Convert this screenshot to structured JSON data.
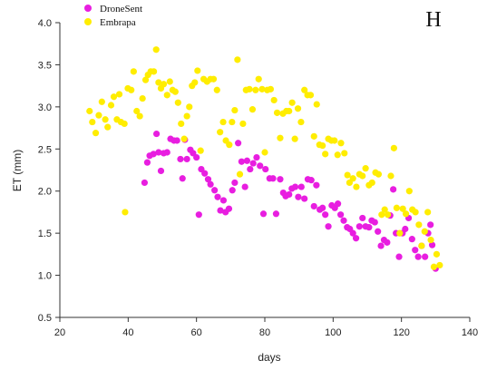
{
  "chart_data": {
    "type": "scatter",
    "title": "",
    "panel_label": "H",
    "xlabel": "days",
    "ylabel": "ET (mm)",
    "xlim": [
      20,
      140
    ],
    "ylim": [
      0.5,
      4.0
    ],
    "xticks": [
      20,
      40,
      60,
      80,
      100,
      120,
      140
    ],
    "yticks": [
      0.5,
      1.0,
      1.5,
      2.0,
      2.5,
      3.0,
      3.5,
      4.0
    ],
    "grid": false,
    "legend_position": "top-left",
    "series": [
      {
        "name": "DroneSent",
        "color": "#e81ee0",
        "points": [
          [
            44.8,
            2.1
          ],
          [
            45.6,
            2.34
          ],
          [
            46.3,
            2.42
          ],
          [
            47.4,
            2.44
          ],
          [
            48.3,
            2.68
          ],
          [
            48.9,
            2.46
          ],
          [
            49.6,
            2.24
          ],
          [
            50.4,
            2.45
          ],
          [
            51.4,
            2.46
          ],
          [
            52.4,
            2.62
          ],
          [
            53.4,
            2.6
          ],
          [
            54.3,
            2.6
          ],
          [
            55.3,
            2.38
          ],
          [
            55.9,
            2.15
          ],
          [
            56.6,
            2.61
          ],
          [
            57.2,
            2.38
          ],
          [
            58.2,
            2.49
          ],
          [
            59.0,
            2.45
          ],
          [
            60.0,
            2.4
          ],
          [
            60.7,
            1.72
          ],
          [
            61.4,
            2.26
          ],
          [
            62.4,
            2.21
          ],
          [
            63.4,
            2.14
          ],
          [
            64.1,
            2.08
          ],
          [
            65.3,
            2.01
          ],
          [
            66.2,
            1.93
          ],
          [
            67.0,
            1.77
          ],
          [
            67.9,
            1.89
          ],
          [
            68.5,
            1.75
          ],
          [
            69.5,
            1.79
          ],
          [
            70.5,
            2.01
          ],
          [
            71.2,
            2.1
          ],
          [
            72.2,
            2.57
          ],
          [
            73.2,
            2.35
          ],
          [
            74.2,
            2.05
          ],
          [
            74.8,
            2.36
          ],
          [
            75.7,
            2.26
          ],
          [
            76.6,
            2.33
          ],
          [
            77.6,
            2.4
          ],
          [
            78.6,
            2.3
          ],
          [
            79.6,
            1.73
          ],
          [
            80.2,
            2.26
          ],
          [
            81.4,
            2.15
          ],
          [
            82.4,
            2.15
          ],
          [
            83.3,
            1.73
          ],
          [
            84.5,
            2.14
          ],
          [
            85.4,
            1.98
          ],
          [
            86.1,
            1.94
          ],
          [
            87.1,
            1.96
          ],
          [
            87.9,
            2.03
          ],
          [
            88.9,
            2.05
          ],
          [
            89.8,
            1.93
          ],
          [
            90.7,
            2.05
          ],
          [
            91.6,
            1.91
          ],
          [
            92.6,
            2.14
          ],
          [
            93.6,
            2.13
          ],
          [
            94.4,
            1.82
          ],
          [
            95.1,
            2.07
          ],
          [
            96.1,
            1.78
          ],
          [
            96.9,
            1.8
          ],
          [
            97.7,
            1.72
          ],
          [
            98.6,
            1.58
          ],
          [
            99.6,
            1.83
          ],
          [
            100.5,
            1.8
          ],
          [
            101.4,
            1.85
          ],
          [
            102.2,
            1.72
          ],
          [
            103.1,
            1.65
          ],
          [
            104.1,
            1.57
          ],
          [
            104.9,
            1.55
          ],
          [
            105.8,
            1.5
          ],
          [
            106.7,
            1.44
          ],
          [
            107.7,
            1.58
          ],
          [
            108.6,
            1.68
          ],
          [
            109.5,
            1.58
          ],
          [
            110.5,
            1.57
          ],
          [
            111.3,
            1.65
          ],
          [
            112.2,
            1.63
          ],
          [
            113.1,
            1.52
          ],
          [
            114.0,
            1.35
          ],
          [
            114.9,
            1.42
          ],
          [
            115.8,
            1.39
          ],
          [
            116.7,
            1.71
          ],
          [
            117.6,
            2.02
          ],
          [
            118.4,
            1.5
          ],
          [
            119.3,
            1.22
          ],
          [
            120.3,
            1.5
          ],
          [
            121.1,
            1.55
          ],
          [
            122.1,
            1.68
          ],
          [
            123.1,
            1.43
          ],
          [
            124.0,
            1.3
          ],
          [
            124.9,
            1.22
          ],
          [
            125.9,
            1.35
          ],
          [
            126.9,
            1.22
          ],
          [
            127.8,
            1.5
          ],
          [
            128.5,
            1.6
          ],
          [
            129.0,
            1.36
          ],
          [
            130.0,
            1.08
          ]
        ]
      },
      {
        "name": "Embrapa",
        "color": "#ffed00",
        "points": [
          [
            28.7,
            2.95
          ],
          [
            29.5,
            2.82
          ],
          [
            30.5,
            2.69
          ],
          [
            31.4,
            2.9
          ],
          [
            32.3,
            3.06
          ],
          [
            33.3,
            2.85
          ],
          [
            34.0,
            2.76
          ],
          [
            35.0,
            3.02
          ],
          [
            35.8,
            3.12
          ],
          [
            36.7,
            2.85
          ],
          [
            37.4,
            3.15
          ],
          [
            37.9,
            2.82
          ],
          [
            38.9,
            2.8
          ],
          [
            39.1,
            1.75
          ],
          [
            39.9,
            3.22
          ],
          [
            40.9,
            3.2
          ],
          [
            41.6,
            3.42
          ],
          [
            42.5,
            2.95
          ],
          [
            43.4,
            2.89
          ],
          [
            44.2,
            3.1
          ],
          [
            45.1,
            3.32
          ],
          [
            45.8,
            3.38
          ],
          [
            46.6,
            3.42
          ],
          [
            47.5,
            3.42
          ],
          [
            48.2,
            3.68
          ],
          [
            48.9,
            3.29
          ],
          [
            49.6,
            3.22
          ],
          [
            50.4,
            3.27
          ],
          [
            51.4,
            3.14
          ],
          [
            52.2,
            3.3
          ],
          [
            53.0,
            3.2
          ],
          [
            53.8,
            3.18
          ],
          [
            54.6,
            3.05
          ],
          [
            55.5,
            2.8
          ],
          [
            56.4,
            2.62
          ],
          [
            57.2,
            2.89
          ],
          [
            57.9,
            3.0
          ],
          [
            58.7,
            3.25
          ],
          [
            59.5,
            3.29
          ],
          [
            60.3,
            3.43
          ],
          [
            61.2,
            2.48
          ],
          [
            62.1,
            3.33
          ],
          [
            63.1,
            3.3
          ],
          [
            64.1,
            3.33
          ],
          [
            65.0,
            3.33
          ],
          [
            66.0,
            3.2
          ],
          [
            66.9,
            2.7
          ],
          [
            67.8,
            2.82
          ],
          [
            68.6,
            2.6
          ],
          [
            69.6,
            2.55
          ],
          [
            70.4,
            2.82
          ],
          [
            71.2,
            2.96
          ],
          [
            72.0,
            3.56
          ],
          [
            72.7,
            2.2
          ],
          [
            73.6,
            2.8
          ],
          [
            74.5,
            3.2
          ],
          [
            75.5,
            3.21
          ],
          [
            76.4,
            2.97
          ],
          [
            77.3,
            3.2
          ],
          [
            78.2,
            3.33
          ],
          [
            79.2,
            3.21
          ],
          [
            80.0,
            2.46
          ],
          [
            80.7,
            3.2
          ],
          [
            81.7,
            3.21
          ],
          [
            82.7,
            3.08
          ],
          [
            83.6,
            2.93
          ],
          [
            84.5,
            2.63
          ],
          [
            85.3,
            2.92
          ],
          [
            86.3,
            2.95
          ],
          [
            87.1,
            2.95
          ],
          [
            88.0,
            3.05
          ],
          [
            88.8,
            2.62
          ],
          [
            89.7,
            2.98
          ],
          [
            90.6,
            2.82
          ],
          [
            91.6,
            3.2
          ],
          [
            92.5,
            3.14
          ],
          [
            93.4,
            3.14
          ],
          [
            94.4,
            2.65
          ],
          [
            95.2,
            3.03
          ],
          [
            96.0,
            2.55
          ],
          [
            96.9,
            2.54
          ],
          [
            97.7,
            2.44
          ],
          [
            98.6,
            2.62
          ],
          [
            99.5,
            2.6
          ],
          [
            100.4,
            2.6
          ],
          [
            101.3,
            2.43
          ],
          [
            102.3,
            2.57
          ],
          [
            103.3,
            2.45
          ],
          [
            104.2,
            2.19
          ],
          [
            104.8,
            2.1
          ],
          [
            105.8,
            2.15
          ],
          [
            106.8,
            2.05
          ],
          [
            107.7,
            2.2
          ],
          [
            108.6,
            2.18
          ],
          [
            109.5,
            2.27
          ],
          [
            110.5,
            2.07
          ],
          [
            111.4,
            2.1
          ],
          [
            112.4,
            2.22
          ],
          [
            113.3,
            2.2
          ],
          [
            114.2,
            1.72
          ],
          [
            115.1,
            1.78
          ],
          [
            116.0,
            1.72
          ],
          [
            116.9,
            2.18
          ],
          [
            117.8,
            2.51
          ],
          [
            118.6,
            1.8
          ],
          [
            119.5,
            1.5
          ],
          [
            120.4,
            1.79
          ],
          [
            121.3,
            1.73
          ],
          [
            122.3,
            2.0
          ],
          [
            123.2,
            1.78
          ],
          [
            124.1,
            1.75
          ],
          [
            125.1,
            1.6
          ],
          [
            125.9,
            1.35
          ],
          [
            126.8,
            1.52
          ],
          [
            127.7,
            1.75
          ],
          [
            128.6,
            1.42
          ],
          [
            129.5,
            1.1
          ],
          [
            130.3,
            1.25
          ],
          [
            131.2,
            1.12
          ]
        ]
      }
    ]
  }
}
